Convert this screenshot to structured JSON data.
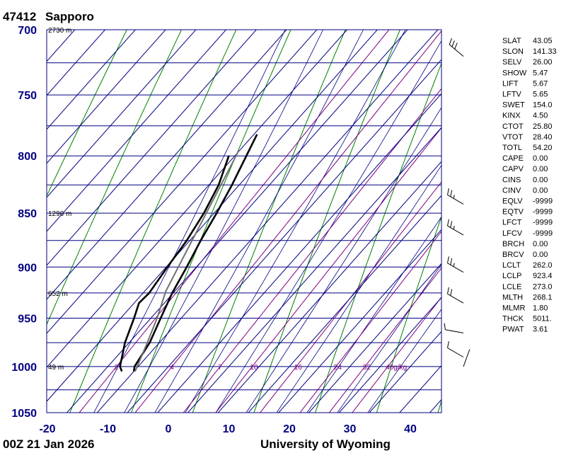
{
  "header": {
    "station_id": "47412",
    "station_name": "Sapporo",
    "time": "00Z 21 Jan 2026",
    "source": "University of Wyoming"
  },
  "chart_data": {
    "type": "line",
    "chart_kind": "skew-t log-p",
    "pressure_levels": [
      700,
      750,
      800,
      850,
      900,
      950,
      1000,
      1050
    ],
    "pressure_tick_labels": [
      "700",
      "750",
      "800",
      "850",
      "900",
      "950",
      "1000",
      "1050"
    ],
    "ylim": [
      1050,
      700
    ],
    "temperature_ticks": [
      -20,
      -10,
      0,
      10,
      20,
      30,
      40
    ],
    "temperature_tick_labels": [
      "-20",
      "-10",
      "0",
      "10",
      "20",
      "30",
      "40"
    ],
    "xlim": [
      -20,
      45
    ],
    "height_labels": [
      {
        "p": 700,
        "text": "2730 m"
      },
      {
        "p": 850,
        "text": "1296 m"
      },
      {
        "p": 925,
        "text": "652 m"
      },
      {
        "p": 1000,
        "text": "49 m"
      }
    ],
    "mixing_ratio_labels": [
      {
        "w": 2,
        "text": "2"
      },
      {
        "w": 4,
        "text": "4"
      },
      {
        "w": 7,
        "text": "7"
      },
      {
        "w": 10,
        "text": "10"
      },
      {
        "w": 16,
        "text": "16"
      },
      {
        "w": 24,
        "text": "24"
      },
      {
        "w": 32,
        "text": "32"
      },
      {
        "w": 40,
        "text": "40g/kg"
      }
    ],
    "series": [
      {
        "role": "temperature",
        "color": "#000000",
        "points": [
          [
            1005,
            -5.0
          ],
          [
            1000,
            -5.6
          ],
          [
            975,
            -6.6
          ],
          [
            950,
            -8.4
          ],
          [
            925,
            -10.2
          ],
          [
            900,
            -11.6
          ],
          [
            875,
            -13.2
          ],
          [
            850,
            -14.6
          ],
          [
            825,
            -16.2
          ],
          [
            800,
            -18.1
          ],
          [
            782,
            -19.5
          ]
        ]
      },
      {
        "role": "dewpoint",
        "color": "#000000",
        "points": [
          [
            1005,
            -7.0
          ],
          [
            1000,
            -8.0
          ],
          [
            975,
            -10.7
          ],
          [
            950,
            -12.8
          ],
          [
            935,
            -14.2
          ],
          [
            925,
            -14.0
          ],
          [
            900,
            -14.8
          ],
          [
            875,
            -15.5
          ],
          [
            850,
            -16.7
          ],
          [
            825,
            -18.4
          ],
          [
            800,
            -21.0
          ]
        ]
      },
      {
        "role": "parcel",
        "color": "#707070",
        "points": [
          [
            1005,
            -4.8
          ],
          [
            975,
            -7.0
          ],
          [
            950,
            -9.0
          ],
          [
            923.4,
            -11.5
          ],
          [
            900,
            -13.0
          ],
          [
            850,
            -16.3
          ],
          [
            800,
            -19.8
          ],
          [
            795,
            -20.2
          ]
        ]
      }
    ],
    "wind_barbs": [
      {
        "p": 1000,
        "dir": 20,
        "spd": 0
      },
      {
        "p": 990,
        "dir": 300,
        "spd": 10
      },
      {
        "p": 965,
        "dir": 280,
        "spd": 10
      },
      {
        "p": 935,
        "dir": 300,
        "spd": 20
      },
      {
        "p": 905,
        "dir": 300,
        "spd": 25
      },
      {
        "p": 870,
        "dir": 300,
        "spd": 25
      },
      {
        "p": 842,
        "dir": 300,
        "spd": 25
      },
      {
        "p": 720,
        "dir": 310,
        "spd": 30
      }
    ],
    "indices": [
      {
        "label": "SLAT",
        "value": "43.05"
      },
      {
        "label": "SLON",
        "value": "141.33"
      },
      {
        "label": "SELV",
        "value": "26.00"
      },
      {
        "label": "SHOW",
        "value": "5.47"
      },
      {
        "label": "LIFT",
        "value": "5.67"
      },
      {
        "label": "LFTV",
        "value": "5.65"
      },
      {
        "label": "SWET",
        "value": "154.0"
      },
      {
        "label": "KINX",
        "value": "4.50"
      },
      {
        "label": "CTOT",
        "value": "25.80"
      },
      {
        "label": "VTOT",
        "value": "28.40"
      },
      {
        "label": "TOTL",
        "value": "54.20"
      },
      {
        "label": "CAPE",
        "value": "0.00"
      },
      {
        "label": "CAPV",
        "value": "0.00"
      },
      {
        "label": "CINS",
        "value": "0.00"
      },
      {
        "label": "CINV",
        "value": "0.00"
      },
      {
        "label": "EQLV",
        "value": "-9999"
      },
      {
        "label": "EQTV",
        "value": "-9999"
      },
      {
        "label": "LFCT",
        "value": "-9999"
      },
      {
        "label": "LFCV",
        "value": "-9999"
      },
      {
        "label": "BRCH",
        "value": "0.00"
      },
      {
        "label": "BRCV",
        "value": "0.00"
      },
      {
        "label": "LCLT",
        "value": "262.0"
      },
      {
        "label": "LCLP",
        "value": "923.4"
      },
      {
        "label": "LCLE",
        "value": "273.0"
      },
      {
        "label": "MLTH",
        "value": "268.1"
      },
      {
        "label": "MLMR",
        "value": "1.80"
      },
      {
        "label": "THCK",
        "value": "5011."
      },
      {
        "label": "PWAT",
        "value": "3.61"
      }
    ],
    "colors": {
      "grid": "#000080",
      "dry_adiabat": "#008000",
      "moist_adiabat": "#000080",
      "mixing_ratio": "#800080",
      "tick_label": "#000080",
      "trace": "#000000",
      "parcel": "#707070"
    }
  }
}
